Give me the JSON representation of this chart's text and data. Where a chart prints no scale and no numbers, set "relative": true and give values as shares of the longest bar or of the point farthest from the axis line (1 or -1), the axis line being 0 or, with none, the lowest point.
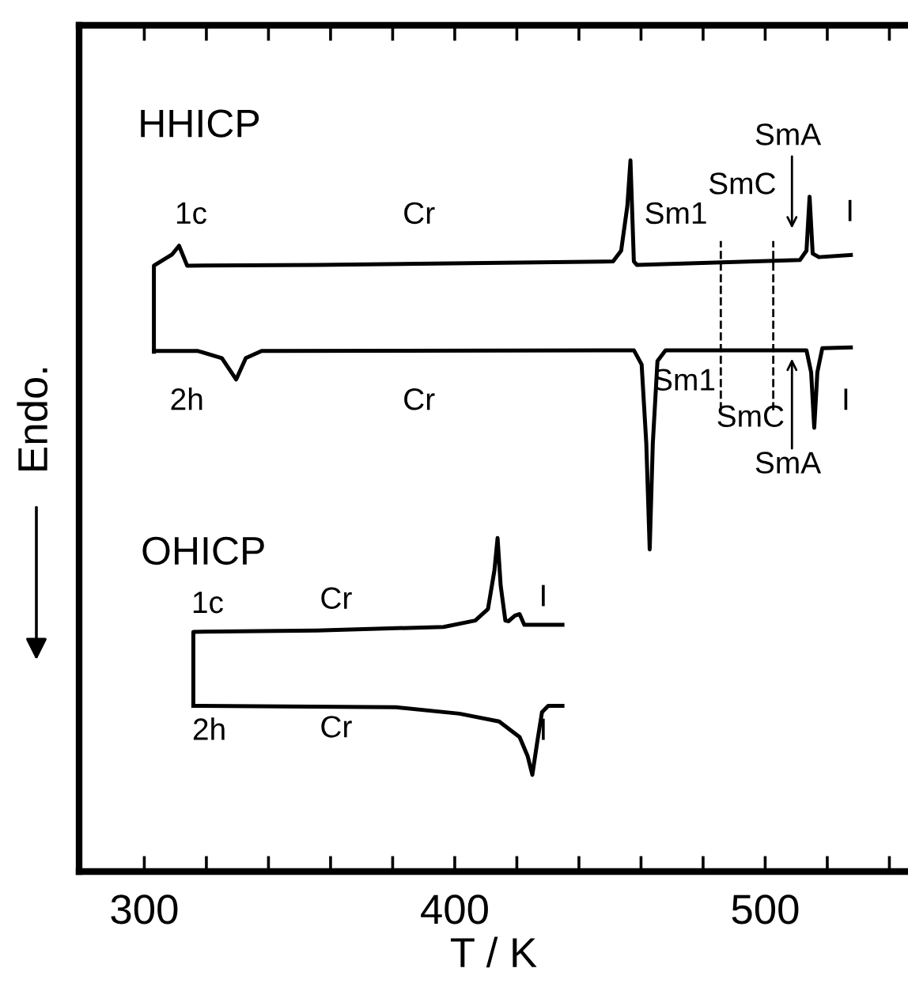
{
  "chart_data": {
    "type": "line",
    "relative": true,
    "xlabel": "T / K",
    "ylabel": "Endo.",
    "xlim": [
      279,
      546
    ],
    "xticks": [
      300,
      {
        "value": 320,
        "label": null
      },
      {
        "value": 340,
        "label": null
      },
      {
        "value": 360,
        "label": null
      },
      {
        "value": 380,
        "label": null
      },
      400,
      {
        "value": 420,
        "label": null
      },
      {
        "value": 440,
        "label": null
      },
      {
        "value": 460,
        "label": null
      },
      {
        "value": 480,
        "label": null
      },
      500,
      {
        "value": 520,
        "label": null
      },
      {
        "value": 540,
        "label": null
      }
    ],
    "line_style": "solid",
    "marker": "none",
    "grid": false,
    "series": [
      {
        "color": "#000000",
        "x": [
          303.1,
          303.1,
          309.0,
          311.2,
          313.8,
          355.6,
          451.0,
          453.6,
          455.6,
          456.6,
          457.7,
          458.7,
          511.2,
          513.3,
          514.3,
          515.3,
          517.3,
          527.6
        ],
        "values": [
          0.731,
          0.852,
          0.868,
          0.88,
          0.852,
          0.853,
          0.858,
          0.873,
          0.936,
          1.0,
          0.858,
          0.853,
          0.86,
          0.873,
          0.949,
          0.869,
          0.864,
          0.867
        ]
      },
      {
        "color": "#000000",
        "x": [
          303.1,
          317.3,
          325.0,
          329.6,
          332.7,
          337.8,
          457.7,
          460.2,
          461.7,
          462.8,
          463.8,
          465.3,
          467.9,
          513.3,
          514.8,
          515.8,
          516.8,
          518.4,
          527.6
        ],
        "values": [
          0.732,
          0.732,
          0.722,
          0.692,
          0.722,
          0.732,
          0.733,
          0.713,
          0.602,
          0.453,
          0.602,
          0.718,
          0.733,
          0.733,
          0.702,
          0.624,
          0.702,
          0.736,
          0.737
        ]
      },
      {
        "color": "#000000",
        "x": [
          315.8,
          315.8,
          355.6,
          396.4,
          406.6,
          410.7,
          412.8,
          413.8,
          414.8,
          416.3,
          417.3,
          419.4,
          420.9,
          422.4,
          434.7
        ],
        "values": [
          0.233,
          0.337,
          0.339,
          0.344,
          0.353,
          0.369,
          0.424,
          0.469,
          0.402,
          0.353,
          0.352,
          0.36,
          0.362,
          0.347,
          0.347
        ]
      },
      {
        "color": "#000000",
        "x": [
          315.8,
          381.1,
          401.5,
          414.3,
          420.9,
          423.5,
          425.0,
          426.5,
          428.1,
          430.1,
          434.7
        ],
        "values": [
          0.233,
          0.231,
          0.222,
          0.211,
          0.189,
          0.162,
          0.136,
          0.18,
          0.224,
          0.233,
          0.233
        ]
      }
    ],
    "ref_lines": [
      {
        "axis": "x",
        "value": 485.7,
        "line_style": "dashed",
        "color": "#000000"
      },
      {
        "axis": "x",
        "value": 502.6,
        "line_style": "dashed",
        "color": "#000000"
      }
    ],
    "annotations": [
      "HHICP",
      "1c",
      "Cr",
      "Sm1",
      "SmC",
      "SmA",
      "I",
      "2h",
      "Cr",
      "Sm1",
      "SmC",
      "SmA",
      "I",
      "OHICP",
      "1c",
      "Cr",
      "I",
      "2h",
      "Cr",
      "I"
    ]
  }
}
